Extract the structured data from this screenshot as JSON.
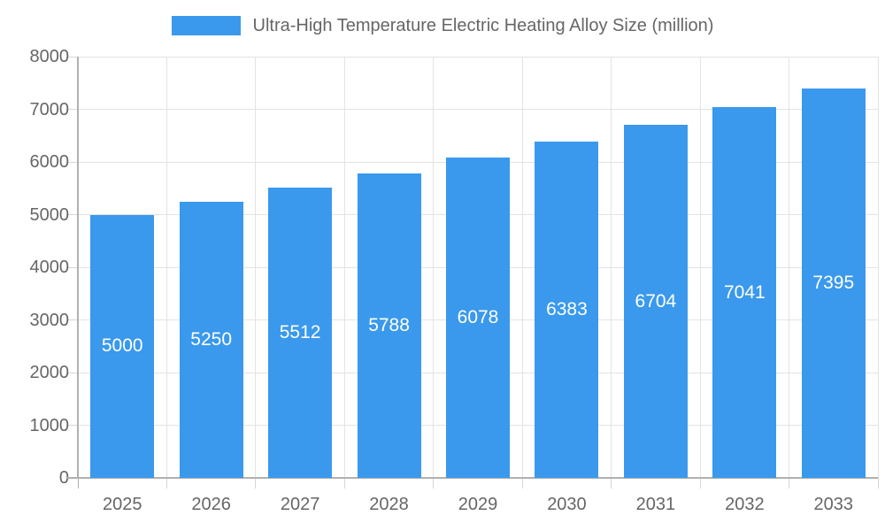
{
  "chart_data": {
    "type": "bar",
    "title": "Ultra-High Temperature Electric Heating Alloy Size (million)",
    "categories": [
      "2025",
      "2026",
      "2027",
      "2028",
      "2029",
      "2030",
      "2031",
      "2032",
      "2033"
    ],
    "values": [
      5000,
      5250,
      5512,
      5788,
      6078,
      6383,
      6704,
      7041,
      7395
    ],
    "xlabel": "",
    "ylabel": "",
    "ylim": [
      0,
      8000
    ],
    "yticks": [
      0,
      1000,
      2000,
      3000,
      4000,
      5000,
      6000,
      7000,
      8000
    ],
    "grid": true,
    "legend_position": "top",
    "legend_entries": [
      "Ultra-High Temperature Electric Heating Alloy Size (million)"
    ],
    "colors": {
      "bar": "#3A99EC",
      "value_label": "#FFFFFF",
      "axis_text": "#666666",
      "legend_text": "#666666",
      "gridline": "#E3E3E3",
      "axis_border": "#B1B1B1",
      "outer_tick": "#D6D6D6",
      "background": "#FFFFFF"
    }
  }
}
